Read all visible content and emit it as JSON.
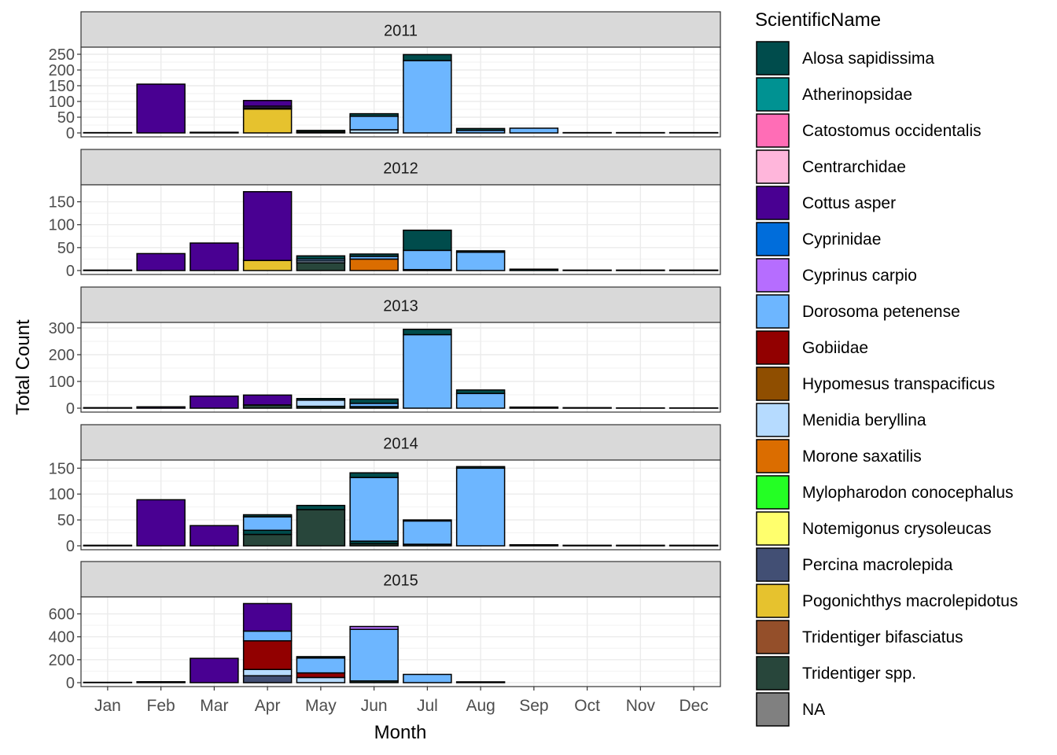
{
  "chart_data": {
    "type": "bar",
    "stacked": true,
    "facet_by": "year",
    "xlabel": "Month",
    "ylabel": "Total Count",
    "categories": [
      "Jan",
      "Feb",
      "Mar",
      "Apr",
      "May",
      "Jun",
      "Jul",
      "Aug",
      "Sep",
      "Oct",
      "Nov",
      "Dec"
    ],
    "grid": true,
    "legend": {
      "title": "ScientificName",
      "position": "right",
      "entries": [
        {
          "name": "Alosa sapidissima",
          "color": "#004C4C"
        },
        {
          "name": "Atherinopsidae",
          "color": "#009292"
        },
        {
          "name": "Catostomus occidentalis",
          "color": "#FF6DB6"
        },
        {
          "name": "Centrarchidae",
          "color": "#FFB6DB"
        },
        {
          "name": "Cottus asper",
          "color": "#490092"
        },
        {
          "name": "Cyprinidae",
          "color": "#006DDB"
        },
        {
          "name": "Cyprinus carpio",
          "color": "#B66DFF"
        },
        {
          "name": "Dorosoma petenense",
          "color": "#6DB6FF"
        },
        {
          "name": "Gobiidae",
          "color": "#920000"
        },
        {
          "name": "Hypomesus transpacificus",
          "color": "#8F4E00"
        },
        {
          "name": "Menidia beryllina",
          "color": "#B6DBFF"
        },
        {
          "name": "Morone saxatilis",
          "color": "#DB6D00"
        },
        {
          "name": "Mylopharodon conocephalus",
          "color": "#24FF24"
        },
        {
          "name": "Notemigonus crysoleucas",
          "color": "#FFFF6D"
        },
        {
          "name": "Percina macrolepida",
          "color": "#424F74"
        },
        {
          "name": "Pogonichthys macrolepidotus",
          "color": "#E6C22E"
        },
        {
          "name": "Tridentiger bifasciatus",
          "color": "#944F2A"
        },
        {
          "name": "Tridentiger spp.",
          "color": "#28463B"
        },
        {
          "name": "NA",
          "color": "#808080"
        }
      ]
    },
    "panels": [
      {
        "title": "2011",
        "ylim": [
          0,
          255
        ],
        "yticks": [
          0,
          50,
          100,
          150,
          200,
          250
        ],
        "bars": [
          {
            "month": "Jan",
            "segments": [
              {
                "species": "Cottus asper",
                "value": 1
              }
            ]
          },
          {
            "month": "Feb",
            "segments": [
              {
                "species": "Cottus asper",
                "value": 155
              }
            ]
          },
          {
            "month": "Mar",
            "segments": [
              {
                "species": "Cottus asper",
                "value": 2
              }
            ]
          },
          {
            "month": "Apr",
            "segments": [
              {
                "species": "Pogonichthys macrolepidotus",
                "value": 76
              },
              {
                "species": "Tridentiger spp.",
                "value": 4
              },
              {
                "species": "Cyprinus carpio",
                "value": 5
              },
              {
                "species": "Cottus asper",
                "value": 18
              }
            ]
          },
          {
            "month": "May",
            "segments": [
              {
                "species": "Mylopharodon conocephalus",
                "value": 3
              },
              {
                "species": "Tridentiger spp.",
                "value": 5
              }
            ]
          },
          {
            "month": "Jun",
            "segments": [
              {
                "species": "Menidia beryllina",
                "value": 10
              },
              {
                "species": "Dorosoma petenense",
                "value": 43
              },
              {
                "species": "Alosa sapidissima",
                "value": 8
              }
            ]
          },
          {
            "month": "Jul",
            "segments": [
              {
                "species": "Dorosoma petenense",
                "value": 230
              },
              {
                "species": "Alosa sapidissima",
                "value": 19
              }
            ]
          },
          {
            "month": "Aug",
            "segments": [
              {
                "species": "Dorosoma petenense",
                "value": 8
              },
              {
                "species": "Alosa sapidissima",
                "value": 6
              }
            ]
          },
          {
            "month": "Sep",
            "segments": [
              {
                "species": "Dorosoma petenense",
                "value": 15
              }
            ]
          },
          {
            "month": "Oct",
            "segments": [
              {
                "species": "Cottus asper",
                "value": 1
              }
            ]
          },
          {
            "month": "Nov",
            "segments": [
              {
                "species": "Cottus asper",
                "value": 1
              }
            ]
          },
          {
            "month": "Dec",
            "segments": [
              {
                "species": "Cottus asper",
                "value": 1
              }
            ]
          }
        ]
      },
      {
        "title": "2012",
        "ylim": [
          0,
          175
        ],
        "yticks": [
          0,
          50,
          100,
          150
        ],
        "bars": [
          {
            "month": "Jan",
            "segments": [
              {
                "species": "Cottus asper",
                "value": 1
              }
            ]
          },
          {
            "month": "Feb",
            "segments": [
              {
                "species": "Cottus asper",
                "value": 37
              }
            ]
          },
          {
            "month": "Mar",
            "segments": [
              {
                "species": "Cottus asper",
                "value": 60
              }
            ]
          },
          {
            "month": "Apr",
            "segments": [
              {
                "species": "Pogonichthys macrolepidotus",
                "value": 22
              },
              {
                "species": "Cottus asper",
                "value": 150
              }
            ]
          },
          {
            "month": "May",
            "segments": [
              {
                "species": "Tridentiger spp.",
                "value": 17
              },
              {
                "species": "Menidia beryllina",
                "value": 4
              },
              {
                "species": "Dorosoma petenense",
                "value": 4
              },
              {
                "species": "Alosa sapidissima",
                "value": 7
              }
            ]
          },
          {
            "month": "Jun",
            "segments": [
              {
                "species": "Morone saxatilis",
                "value": 25
              },
              {
                "species": "Dorosoma petenense",
                "value": 6
              },
              {
                "species": "Alosa sapidissima",
                "value": 5
              }
            ]
          },
          {
            "month": "Jul",
            "segments": [
              {
                "species": "Menidia beryllina",
                "value": 2
              },
              {
                "species": "Dorosoma petenense",
                "value": 42
              },
              {
                "species": "Alosa sapidissima",
                "value": 44
              }
            ]
          },
          {
            "month": "Aug",
            "segments": [
              {
                "species": "Dorosoma petenense",
                "value": 40
              },
              {
                "species": "Alosa sapidissima",
                "value": 3
              }
            ]
          },
          {
            "month": "Sep",
            "segments": [
              {
                "species": "Alosa sapidissima",
                "value": 3
              }
            ]
          },
          {
            "month": "Oct",
            "segments": [
              {
                "species": "Cottus asper",
                "value": 1
              }
            ]
          },
          {
            "month": "Nov",
            "segments": [
              {
                "species": "Cottus asper",
                "value": 1
              }
            ]
          },
          {
            "month": "Dec",
            "segments": [
              {
                "species": "Cottus asper",
                "value": 1
              }
            ]
          }
        ]
      },
      {
        "title": "2013",
        "ylim": [
          0,
          300
        ],
        "yticks": [
          0,
          100,
          200,
          300
        ],
        "bars": [
          {
            "month": "Jan",
            "segments": [
              {
                "species": "Cottus asper",
                "value": 2
              }
            ]
          },
          {
            "month": "Feb",
            "segments": [
              {
                "species": "Cottus asper",
                "value": 5
              }
            ]
          },
          {
            "month": "Mar",
            "segments": [
              {
                "species": "Cottus asper",
                "value": 45
              }
            ]
          },
          {
            "month": "Apr",
            "segments": [
              {
                "species": "Tridentiger spp.",
                "value": 12
              },
              {
                "species": "Cottus asper",
                "value": 37
              }
            ]
          },
          {
            "month": "May",
            "segments": [
              {
                "species": "Tridentiger spp.",
                "value": 7
              },
              {
                "species": "Menidia beryllina",
                "value": 23
              },
              {
                "species": "Alosa sapidissima",
                "value": 6
              }
            ]
          },
          {
            "month": "Jun",
            "segments": [
              {
                "species": "Tridentiger spp.",
                "value": 6
              },
              {
                "species": "Dorosoma petenense",
                "value": 12
              },
              {
                "species": "Alosa sapidissima",
                "value": 16
              }
            ]
          },
          {
            "month": "Jul",
            "segments": [
              {
                "species": "Dorosoma petenense",
                "value": 275
              },
              {
                "species": "Alosa sapidissima",
                "value": 20
              }
            ]
          },
          {
            "month": "Aug",
            "segments": [
              {
                "species": "Dorosoma petenense",
                "value": 55
              },
              {
                "species": "Alosa sapidissima",
                "value": 13
              }
            ]
          },
          {
            "month": "Sep",
            "segments": [
              {
                "species": "Alosa sapidissima",
                "value": 4
              }
            ]
          },
          {
            "month": "Oct",
            "segments": [
              {
                "species": "Alosa sapidissima",
                "value": 2
              }
            ]
          },
          {
            "month": "Nov",
            "segments": [
              {
                "species": "Cottus asper",
                "value": 1
              }
            ]
          },
          {
            "month": "Dec",
            "segments": [
              {
                "species": "Cottus asper",
                "value": 1
              }
            ]
          }
        ]
      },
      {
        "title": "2014",
        "ylim": [
          0,
          155
        ],
        "yticks": [
          0,
          50,
          100,
          150
        ],
        "bars": [
          {
            "month": "Jan",
            "segments": [
              {
                "species": "Cottus asper",
                "value": 1
              }
            ]
          },
          {
            "month": "Feb",
            "segments": [
              {
                "species": "Cottus asper",
                "value": 89
              }
            ]
          },
          {
            "month": "Mar",
            "segments": [
              {
                "species": "Cottus asper",
                "value": 39
              }
            ]
          },
          {
            "month": "Apr",
            "segments": [
              {
                "species": "Tridentiger spp.",
                "value": 22
              },
              {
                "species": "Alosa sapidissima",
                "value": 8
              },
              {
                "species": "Dorosoma petenense",
                "value": 26
              },
              {
                "species": "Alosa sapidissima",
                "value": 4
              }
            ]
          },
          {
            "month": "May",
            "segments": [
              {
                "species": "Tridentiger spp.",
                "value": 70
              },
              {
                "species": "Alosa sapidissima",
                "value": 8
              }
            ]
          },
          {
            "month": "Jun",
            "segments": [
              {
                "species": "Tridentiger spp.",
                "value": 4
              },
              {
                "species": "Alosa sapidissima",
                "value": 5
              },
              {
                "species": "Dorosoma petenense",
                "value": 123
              },
              {
                "species": "Alosa sapidissima",
                "value": 9
              }
            ]
          },
          {
            "month": "Jul",
            "segments": [
              {
                "species": "Tridentiger spp.",
                "value": 3
              },
              {
                "species": "Dorosoma petenense",
                "value": 45
              },
              {
                "species": "Alosa sapidissima",
                "value": 2
              }
            ]
          },
          {
            "month": "Aug",
            "segments": [
              {
                "species": "Dorosoma petenense",
                "value": 150
              },
              {
                "species": "Alosa sapidissima",
                "value": 3
              }
            ]
          },
          {
            "month": "Sep",
            "segments": [
              {
                "species": "Alosa sapidissima",
                "value": 2
              }
            ]
          },
          {
            "month": "Oct",
            "segments": [
              {
                "species": "Cottus asper",
                "value": 1
              }
            ]
          },
          {
            "month": "Nov",
            "segments": [
              {
                "species": "Cottus asper",
                "value": 1
              }
            ]
          },
          {
            "month": "Dec",
            "segments": [
              {
                "species": "Cottus asper",
                "value": 1
              }
            ]
          }
        ]
      },
      {
        "title": "2015",
        "ylim": [
          0,
          700
        ],
        "yticks": [
          0,
          200,
          400,
          600
        ],
        "bars": [
          {
            "month": "Jan",
            "segments": [
              {
                "species": "Cottus asper",
                "value": 3
              }
            ]
          },
          {
            "month": "Feb",
            "segments": [
              {
                "species": "Cottus asper",
                "value": 8
              }
            ]
          },
          {
            "month": "Mar",
            "segments": [
              {
                "species": "Cottus asper",
                "value": 212
              }
            ]
          },
          {
            "month": "Apr",
            "segments": [
              {
                "species": "Percina macrolepida",
                "value": 60
              },
              {
                "species": "Menidia beryllina",
                "value": 55
              },
              {
                "species": "Gobiidae",
                "value": 250
              },
              {
                "species": "Dorosoma petenense",
                "value": 85
              },
              {
                "species": "Cottus asper",
                "value": 240
              }
            ]
          },
          {
            "month": "May",
            "segments": [
              {
                "species": "Menidia beryllina",
                "value": 45
              },
              {
                "species": "Gobiidae",
                "value": 40
              },
              {
                "species": "Dorosoma petenense",
                "value": 130
              },
              {
                "species": "Alosa sapidissima",
                "value": 12
              }
            ]
          },
          {
            "month": "Jun",
            "segments": [
              {
                "species": "Tridentiger spp.",
                "value": 15
              },
              {
                "species": "Dorosoma petenense",
                "value": 450
              },
              {
                "species": "Cyprinus carpio",
                "value": 25
              }
            ]
          },
          {
            "month": "Jul",
            "segments": [
              {
                "species": "Dorosoma petenense",
                "value": 72
              }
            ]
          },
          {
            "month": "Aug",
            "segments": [
              {
                "species": "Alosa sapidissima",
                "value": 7
              }
            ]
          },
          {
            "month": "Sep",
            "segments": []
          },
          {
            "month": "Oct",
            "segments": []
          },
          {
            "month": "Nov",
            "segments": []
          },
          {
            "month": "Dec",
            "segments": []
          }
        ]
      }
    ]
  }
}
